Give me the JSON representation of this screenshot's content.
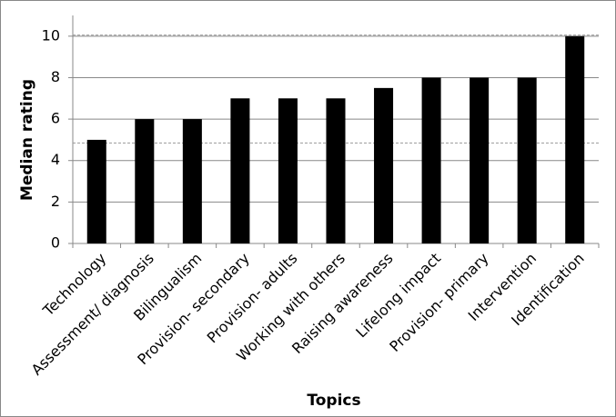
{
  "chart_data": {
    "type": "bar",
    "x_label": "Topics",
    "y_label": "Median rating",
    "categories": [
      "Technology",
      "Assessment/ diagnosis",
      "Bilingualism",
      "Provision- secondary",
      "Provision- adults",
      "Working with others",
      "Raising awareness",
      "Lifelong impact",
      "Provision- primary",
      "Intervention",
      "Identification"
    ],
    "values": [
      5,
      6,
      6,
      7,
      7,
      7,
      7.5,
      8,
      8,
      8,
      10
    ],
    "color": "#000000",
    "ylim": [
      0,
      11
    ],
    "yticks": [
      0,
      2,
      4,
      6,
      8,
      10
    ],
    "grid": true,
    "reference_lines": [
      4.85,
      10.05
    ]
  }
}
